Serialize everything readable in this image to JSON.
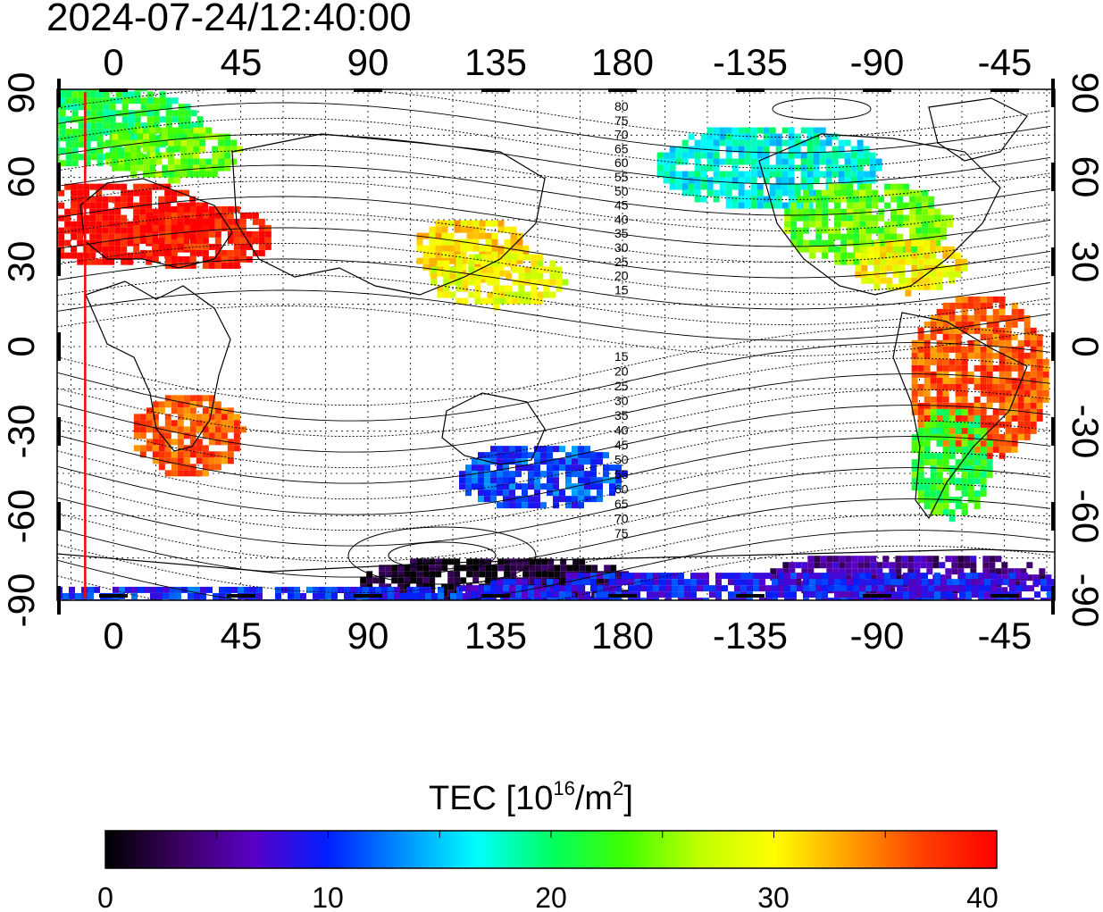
{
  "timestamp": "2024-07-24/12:40:00",
  "axes": {
    "x_top_ticks": [
      "0",
      "45",
      "90",
      "135",
      "180",
      "-135",
      "-90",
      "-45"
    ],
    "x_bottom_ticks": [
      "0",
      "45",
      "90",
      "135",
      "180",
      "-135",
      "-90",
      "-45"
    ],
    "y_left_ticks": [
      "90",
      "60",
      "30",
      "0",
      "-30",
      "-60",
      "-90"
    ],
    "y_right_ticks": [
      "90",
      "60",
      "30",
      "0",
      "-30",
      "-60",
      "-90"
    ]
  },
  "contour_labels_north": [
    "80",
    "75",
    "70",
    "65",
    "60",
    "55",
    "50",
    "45",
    "40",
    "35",
    "30",
    "25",
    "20",
    "15"
  ],
  "contour_labels_south": [
    "15",
    "20",
    "25",
    "30",
    "35",
    "40",
    "45",
    "50",
    "55",
    "60",
    "65",
    "70",
    "75"
  ],
  "colorbar": {
    "title_main": "TEC  [10",
    "title_exp1": "16",
    "title_mid": "/m",
    "title_exp2": "2",
    "title_end": "]",
    "min": 0,
    "max": 40,
    "tick_labels": [
      "0",
      "10",
      "20",
      "30",
      "40"
    ],
    "colors": [
      "#000000",
      "#3a0060",
      "#5a00c8",
      "#0020ff",
      "#0090ff",
      "#00ffff",
      "#00ff60",
      "#40ff00",
      "#c0ff00",
      "#ffff00",
      "#ffa000",
      "#ff4000",
      "#ff0000"
    ]
  },
  "marker_line": {
    "longitude": -10,
    "color": "#ff0000"
  },
  "tec_patches": [
    {
      "lon": -10,
      "lat": 80,
      "w": 40,
      "h": 15,
      "v": 21
    },
    {
      "lon": 20,
      "lat": 70,
      "w": 25,
      "h": 10,
      "v": 24
    },
    {
      "lon": 0,
      "lat": 45,
      "w": 35,
      "h": 15,
      "v": 40
    },
    {
      "lon": 30,
      "lat": 40,
      "w": 25,
      "h": 12,
      "v": 39
    },
    {
      "lon": 25,
      "lat": -30,
      "w": 20,
      "h": 15,
      "v": 36
    },
    {
      "lon": 125,
      "lat": 35,
      "w": 20,
      "h": 12,
      "v": 31
    },
    {
      "lon": 135,
      "lat": 25,
      "w": 25,
      "h": 10,
      "v": 29
    },
    {
      "lon": 150,
      "lat": -45,
      "w": 30,
      "h": 12,
      "v": 11
    },
    {
      "lon": 135,
      "lat": -83,
      "w": 50,
      "h": 10,
      "v": 1
    },
    {
      "lon": -130,
      "lat": 65,
      "w": 40,
      "h": 15,
      "v": 17
    },
    {
      "lon": -95,
      "lat": 45,
      "w": 30,
      "h": 15,
      "v": 24
    },
    {
      "lon": -80,
      "lat": 30,
      "w": 20,
      "h": 10,
      "v": 30
    },
    {
      "lon": -55,
      "lat": -10,
      "w": 25,
      "h": 30,
      "v": 36
    },
    {
      "lon": -65,
      "lat": -40,
      "w": 15,
      "h": 20,
      "v": 22
    },
    {
      "lon": -80,
      "lat": -80,
      "w": 50,
      "h": 8,
      "v": 5
    },
    {
      "lon": 60,
      "lat": -88,
      "w": 120,
      "h": 5,
      "v": 10
    },
    {
      "lon": -120,
      "lat": -86,
      "w": 120,
      "h": 8,
      "v": 9
    }
  ]
}
